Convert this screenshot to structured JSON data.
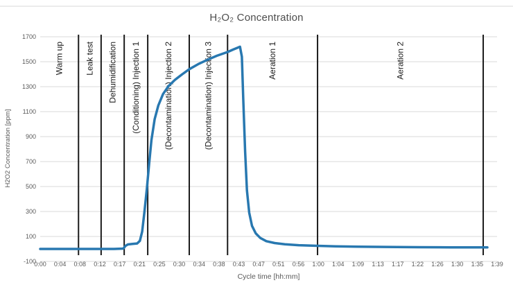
{
  "page": {
    "background": "#ffffff",
    "top_border_color": "#ebebeb"
  },
  "chart_data": {
    "type": "line",
    "title": "H₂O₂ Concentration",
    "xlabel": "Cycle time [hh:mm]",
    "ylabel": "H2O2 Concentration [ppm]",
    "ylim": [
      -100,
      1700
    ],
    "ytick_step": 200,
    "yticks": [
      1700,
      1500,
      1300,
      1100,
      900,
      700,
      500,
      300,
      100,
      -100
    ],
    "xtick_labels": [
      "0:00",
      "0:04",
      "0:08",
      "0:12",
      "0:17",
      "0:21",
      "0:25",
      "0:30",
      "0:34",
      "0:38",
      "0:43",
      "0:47",
      "0:51",
      "0:56",
      "1:00",
      "1:04",
      "1:09",
      "1:13",
      "1:17",
      "1:22",
      "1:26",
      "1:30",
      "1:35",
      "1:39"
    ],
    "x_total_minutes": 99,
    "grid": "horizontal-only",
    "legend_position": "none",
    "colors": {
      "line": "#2878b0",
      "phase_line": "#1a1a1a",
      "grid": "#d9d9d9",
      "tick_text": "#595959",
      "phase_text": "#1a1a1a"
    },
    "phases": [
      {
        "label": "Warm up",
        "start_min": 0,
        "end_min": 8.3
      },
      {
        "label": "Leak test",
        "start_min": 8.3,
        "end_min": 13.2
      },
      {
        "label": "Dehumidification",
        "start_min": 13.2,
        "end_min": 18.2
      },
      {
        "label": "(Conditioning) Injection 1",
        "start_min": 18.2,
        "end_min": 23.3
      },
      {
        "label": "(Decontamination) Injection 2",
        "start_min": 23.3,
        "end_min": 32.3
      },
      {
        "label": "(Decontamination) Injection 3",
        "start_min": 32.3,
        "end_min": 40.6
      },
      {
        "label": "Aeration 1",
        "start_min": 40.6,
        "end_min": 60.1
      },
      {
        "label": "Aeration 2",
        "start_min": 60.1,
        "end_min": 96.0
      }
    ],
    "series": [
      {
        "name": "H2O2 concentration [ppm]",
        "points_min_ppm": [
          [
            0,
            0
          ],
          [
            4,
            0
          ],
          [
            8,
            0
          ],
          [
            12,
            0
          ],
          [
            16,
            0
          ],
          [
            18.0,
            3
          ],
          [
            18.5,
            25
          ],
          [
            19.0,
            36
          ],
          [
            20.0,
            40
          ],
          [
            21.0,
            44
          ],
          [
            21.6,
            65
          ],
          [
            22.1,
            140
          ],
          [
            22.6,
            300
          ],
          [
            23.1,
            480
          ],
          [
            23.6,
            680
          ],
          [
            24.1,
            870
          ],
          [
            24.8,
            1040
          ],
          [
            25.6,
            1150
          ],
          [
            26.6,
            1240
          ],
          [
            27.8,
            1305
          ],
          [
            29.2,
            1355
          ],
          [
            30.8,
            1400
          ],
          [
            32.3,
            1440
          ],
          [
            34.2,
            1480
          ],
          [
            36.2,
            1515
          ],
          [
            38.3,
            1548
          ],
          [
            40.6,
            1578
          ],
          [
            41.8,
            1597
          ],
          [
            42.8,
            1612
          ],
          [
            43.3,
            1620
          ],
          [
            43.7,
            1540
          ],
          [
            44.0,
            1200
          ],
          [
            44.4,
            780
          ],
          [
            44.8,
            470
          ],
          [
            45.3,
            290
          ],
          [
            45.9,
            185
          ],
          [
            46.7,
            125
          ],
          [
            47.7,
            88
          ],
          [
            49.0,
            62
          ],
          [
            50.8,
            47
          ],
          [
            53.0,
            38
          ],
          [
            56.0,
            30
          ],
          [
            60.1,
            25
          ],
          [
            64.0,
            21
          ],
          [
            69.0,
            18
          ],
          [
            75.0,
            16
          ],
          [
            82.0,
            14
          ],
          [
            89.0,
            13
          ],
          [
            96.0,
            12
          ],
          [
            96.9,
            12
          ]
        ]
      }
    ]
  }
}
